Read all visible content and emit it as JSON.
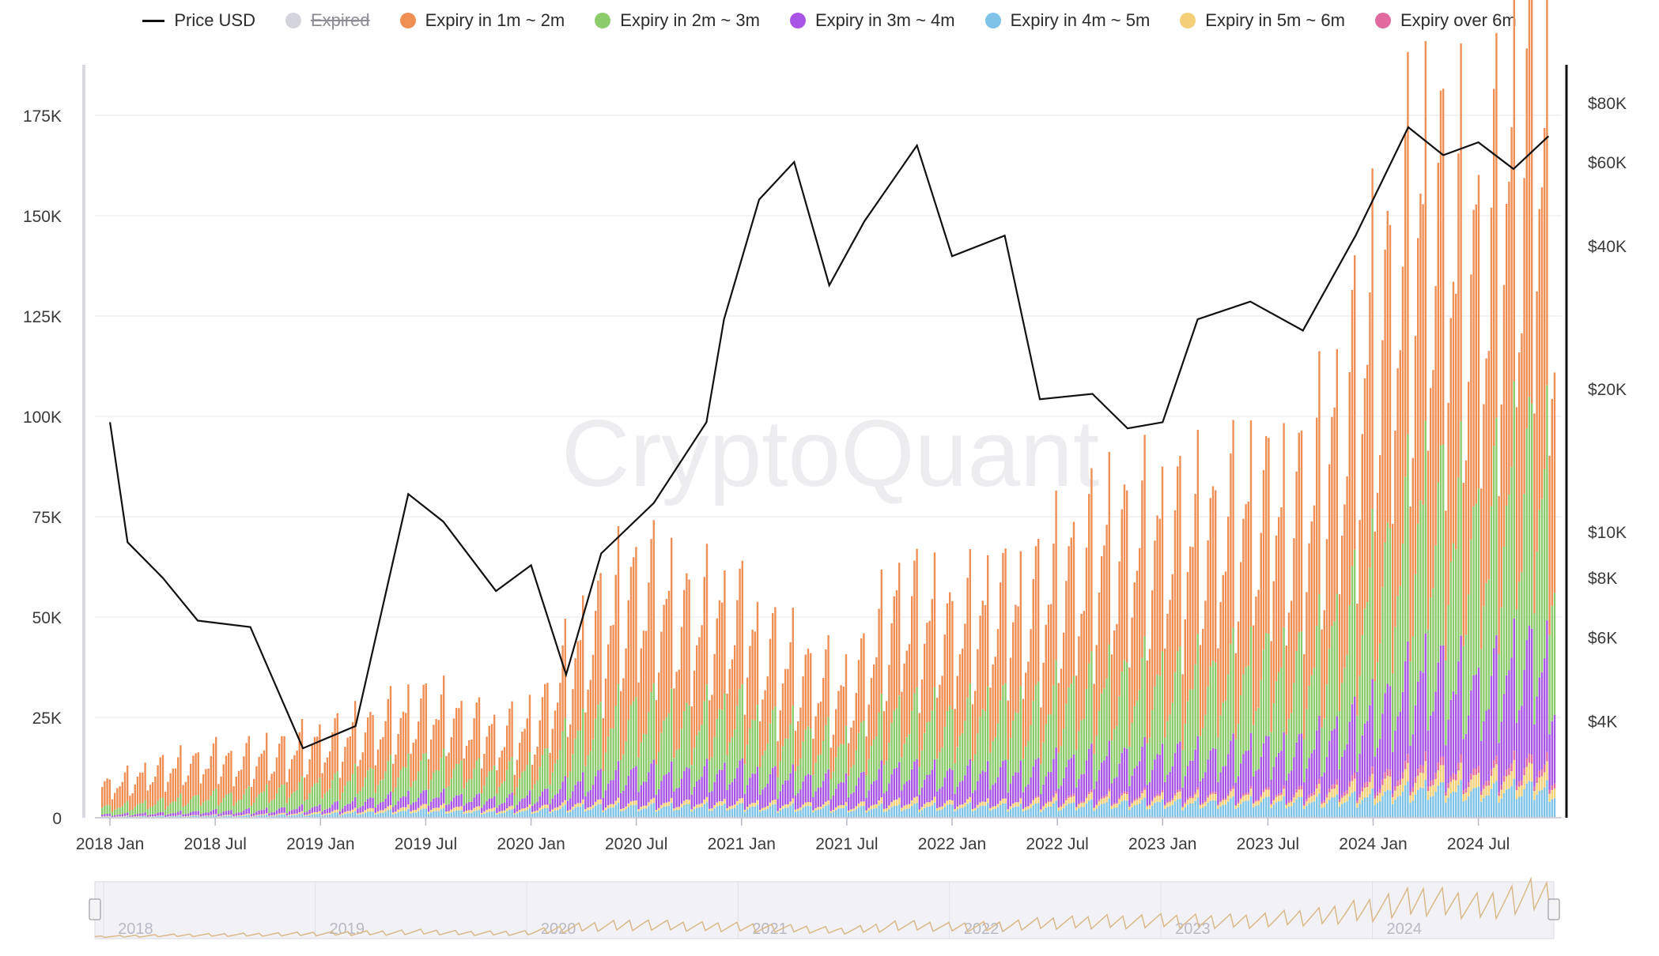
{
  "legend": {
    "items": [
      {
        "key": "price",
        "label": "Price USD",
        "color": "#111111",
        "type": "line",
        "active": true
      },
      {
        "key": "expired",
        "label": "Expired",
        "color": "#d4d4dc",
        "type": "dot",
        "active": false
      },
      {
        "key": "m1_2",
        "label": "Expiry in 1m ~ 2m",
        "color": "#ef8f54",
        "type": "dot",
        "active": true
      },
      {
        "key": "m2_3",
        "label": "Expiry in 2m ~ 3m",
        "color": "#8ccc6c",
        "type": "dot",
        "active": true
      },
      {
        "key": "m3_4",
        "label": "Expiry in 3m ~ 4m",
        "color": "#a855e6",
        "type": "dot",
        "active": true
      },
      {
        "key": "m4_5",
        "label": "Expiry in 4m ~ 5m",
        "color": "#7fc4e8",
        "type": "dot",
        "active": true
      },
      {
        "key": "m5_6",
        "label": "Expiry in 5m ~ 6m",
        "color": "#f3d078",
        "type": "dot",
        "active": true
      },
      {
        "key": "over6",
        "label": "Expiry over 6m",
        "color": "#e06a9e",
        "type": "dot",
        "active": true
      }
    ]
  },
  "watermark": "CryptoQuant",
  "chart_data": {
    "type": "bar",
    "stacked": true,
    "y_left_ticks": [
      "0",
      "25K",
      "50K",
      "75K",
      "100K",
      "125K",
      "150K",
      "175K"
    ],
    "y_left_range": [
      0,
      187000
    ],
    "y_right_ticks": [
      "$4K",
      "$6K",
      "$8K",
      "$10K",
      "$20K",
      "$40K",
      "$60K",
      "$80K"
    ],
    "y_right_values": [
      4000,
      6000,
      8000,
      10000,
      20000,
      40000,
      60000,
      80000
    ],
    "y_right_scale": "log",
    "x_ticks": [
      "2018 Jan",
      "2018 Jul",
      "2019 Jan",
      "2019 Jul",
      "2020 Jan",
      "2020 Jul",
      "2021 Jan",
      "2021 Jul",
      "2022 Jan",
      "2022 Jul",
      "2023 Jan",
      "2023 Jul",
      "2024 Jan",
      "2024 Jul"
    ],
    "navigator_labels": [
      "2018",
      "2019",
      "2020",
      "2021",
      "2022",
      "2023",
      "2024"
    ],
    "grid": true,
    "legend_position": "top",
    "open_interest_series": [
      {
        "date": "2018-01",
        "m1_2": 6000,
        "m2_3": 2000,
        "m3_4": 500,
        "m4_5": 300,
        "m5_6": 100,
        "over6": 0
      },
      {
        "date": "2018-04",
        "m1_2": 9000,
        "m2_3": 3000,
        "m3_4": 700,
        "m4_5": 400,
        "m5_6": 100,
        "over6": 0
      },
      {
        "date": "2018-07",
        "m1_2": 10000,
        "m2_3": 4000,
        "m3_4": 1000,
        "m4_5": 500,
        "m5_6": 200,
        "over6": 0
      },
      {
        "date": "2018-10",
        "m1_2": 11000,
        "m2_3": 5000,
        "m3_4": 1200,
        "m4_5": 700,
        "m5_6": 300,
        "over6": 0
      },
      {
        "date": "2019-01",
        "m1_2": 12000,
        "m2_3": 6000,
        "m3_4": 1500,
        "m4_5": 1000,
        "m5_6": 500,
        "over6": 0
      },
      {
        "date": "2019-04",
        "m1_2": 13000,
        "m2_3": 7000,
        "m3_4": 2500,
        "m4_5": 1500,
        "m5_6": 800,
        "over6": 0
      },
      {
        "date": "2019-07",
        "m1_2": 15000,
        "m2_3": 8000,
        "m3_4": 3000,
        "m4_5": 2000,
        "m5_6": 1000,
        "over6": 0
      },
      {
        "date": "2019-10",
        "m1_2": 12000,
        "m2_3": 7000,
        "m3_4": 2500,
        "m4_5": 1500,
        "m5_6": 800,
        "over6": 0
      },
      {
        "date": "2020-01",
        "m1_2": 12000,
        "m2_3": 8000,
        "m3_4": 3000,
        "m4_5": 2000,
        "m5_6": 800,
        "over6": 0
      },
      {
        "date": "2020-04",
        "m1_2": 25000,
        "m2_3": 14000,
        "m3_4": 6000,
        "m4_5": 3000,
        "m5_6": 1000,
        "over6": 0
      },
      {
        "date": "2020-07",
        "m1_2": 35000,
        "m2_3": 16000,
        "m3_4": 8000,
        "m4_5": 3000,
        "m5_6": 1000,
        "over6": 0
      },
      {
        "date": "2020-10",
        "m1_2": 28000,
        "m2_3": 14000,
        "m3_4": 7000,
        "m4_5": 3000,
        "m5_6": 1000,
        "over6": 0
      },
      {
        "date": "2021-01",
        "m1_2": 25000,
        "m2_3": 15000,
        "m3_4": 8000,
        "m4_5": 3000,
        "m5_6": 1000,
        "over6": 0
      },
      {
        "date": "2021-04",
        "m1_2": 20000,
        "m2_3": 12000,
        "m3_4": 7000,
        "m4_5": 3000,
        "m5_6": 1000,
        "over6": 0
      },
      {
        "date": "2021-07",
        "m1_2": 15000,
        "m2_3": 10000,
        "m3_4": 6000,
        "m4_5": 2500,
        "m5_6": 800,
        "over6": 0
      },
      {
        "date": "2021-10",
        "m1_2": 30000,
        "m2_3": 15000,
        "m3_4": 8000,
        "m4_5": 3000,
        "m5_6": 1500,
        "over6": 0
      },
      {
        "date": "2022-01",
        "m1_2": 25000,
        "m2_3": 14000,
        "m3_4": 7000,
        "m4_5": 3000,
        "m5_6": 1000,
        "over6": 0
      },
      {
        "date": "2022-04",
        "m1_2": 28000,
        "m2_3": 16000,
        "m3_4": 8000,
        "m4_5": 3000,
        "m5_6": 1000,
        "over6": 0
      },
      {
        "date": "2022-07",
        "m1_2": 35000,
        "m2_3": 18000,
        "m3_4": 9000,
        "m4_5": 3500,
        "m5_6": 1500,
        "over6": 500
      },
      {
        "date": "2022-10",
        "m1_2": 40000,
        "m2_3": 20000,
        "m3_4": 10000,
        "m4_5": 4000,
        "m5_6": 1500,
        "over6": 500
      },
      {
        "date": "2023-01",
        "m1_2": 40000,
        "m2_3": 20000,
        "m3_4": 10000,
        "m4_5": 4000,
        "m5_6": 1500,
        "over6": 500
      },
      {
        "date": "2023-04",
        "m1_2": 40000,
        "m2_3": 20000,
        "m3_4": 10000,
        "m4_5": 4000,
        "m5_6": 1500,
        "over6": 500
      },
      {
        "date": "2023-07",
        "m1_2": 42000,
        "m2_3": 22000,
        "m3_4": 11000,
        "m4_5": 4500,
        "m5_6": 1500,
        "over6": 500
      },
      {
        "date": "2023-10",
        "m1_2": 50000,
        "m2_3": 25000,
        "m3_4": 13000,
        "m4_5": 5000,
        "m5_6": 2000,
        "over6": 1000
      },
      {
        "date": "2024-01",
        "m1_2": 70000,
        "m2_3": 35000,
        "m3_4": 18000,
        "m4_5": 6000,
        "m5_6": 3000,
        "over6": 1500
      },
      {
        "date": "2024-04",
        "m1_2": 80000,
        "m2_3": 45000,
        "m3_4": 25000,
        "m4_5": 8000,
        "m5_6": 4000,
        "over6": 2000
      },
      {
        "date": "2024-07",
        "m1_2": 70000,
        "m2_3": 40000,
        "m3_4": 22000,
        "m4_5": 7000,
        "m5_6": 3000,
        "over6": 1500
      },
      {
        "date": "2024-10",
        "m1_2": 90000,
        "m2_3": 50000,
        "m3_4": 28000,
        "m4_5": 8000,
        "m5_6": 4000,
        "over6": 2000
      }
    ],
    "price_usd_series": [
      {
        "date": "2018-01",
        "price": 17000
      },
      {
        "date": "2018-02",
        "price": 9500
      },
      {
        "date": "2018-04",
        "price": 8000
      },
      {
        "date": "2018-06",
        "price": 6500
      },
      {
        "date": "2018-09",
        "price": 6300
      },
      {
        "date": "2018-12",
        "price": 3500
      },
      {
        "date": "2019-03",
        "price": 3900
      },
      {
        "date": "2019-06",
        "price": 12000
      },
      {
        "date": "2019-08",
        "price": 10500
      },
      {
        "date": "2019-11",
        "price": 7500
      },
      {
        "date": "2020-01",
        "price": 8500
      },
      {
        "date": "2020-03",
        "price": 5000
      },
      {
        "date": "2020-05",
        "price": 9000
      },
      {
        "date": "2020-08",
        "price": 11500
      },
      {
        "date": "2020-11",
        "price": 17000
      },
      {
        "date": "2020-12",
        "price": 28000
      },
      {
        "date": "2021-02",
        "price": 50000
      },
      {
        "date": "2021-04",
        "price": 60000
      },
      {
        "date": "2021-06",
        "price": 33000
      },
      {
        "date": "2021-08",
        "price": 45000
      },
      {
        "date": "2021-11",
        "price": 65000
      },
      {
        "date": "2022-01",
        "price": 38000
      },
      {
        "date": "2022-04",
        "price": 42000
      },
      {
        "date": "2022-06",
        "price": 19000
      },
      {
        "date": "2022-09",
        "price": 19500
      },
      {
        "date": "2022-11",
        "price": 16500
      },
      {
        "date": "2023-01",
        "price": 17000
      },
      {
        "date": "2023-03",
        "price": 28000
      },
      {
        "date": "2023-06",
        "price": 30500
      },
      {
        "date": "2023-09",
        "price": 26500
      },
      {
        "date": "2023-12",
        "price": 42000
      },
      {
        "date": "2024-03",
        "price": 71000
      },
      {
        "date": "2024-05",
        "price": 62000
      },
      {
        "date": "2024-07",
        "price": 66000
      },
      {
        "date": "2024-09",
        "price": 58000
      },
      {
        "date": "2024-11",
        "price": 68000
      }
    ]
  }
}
